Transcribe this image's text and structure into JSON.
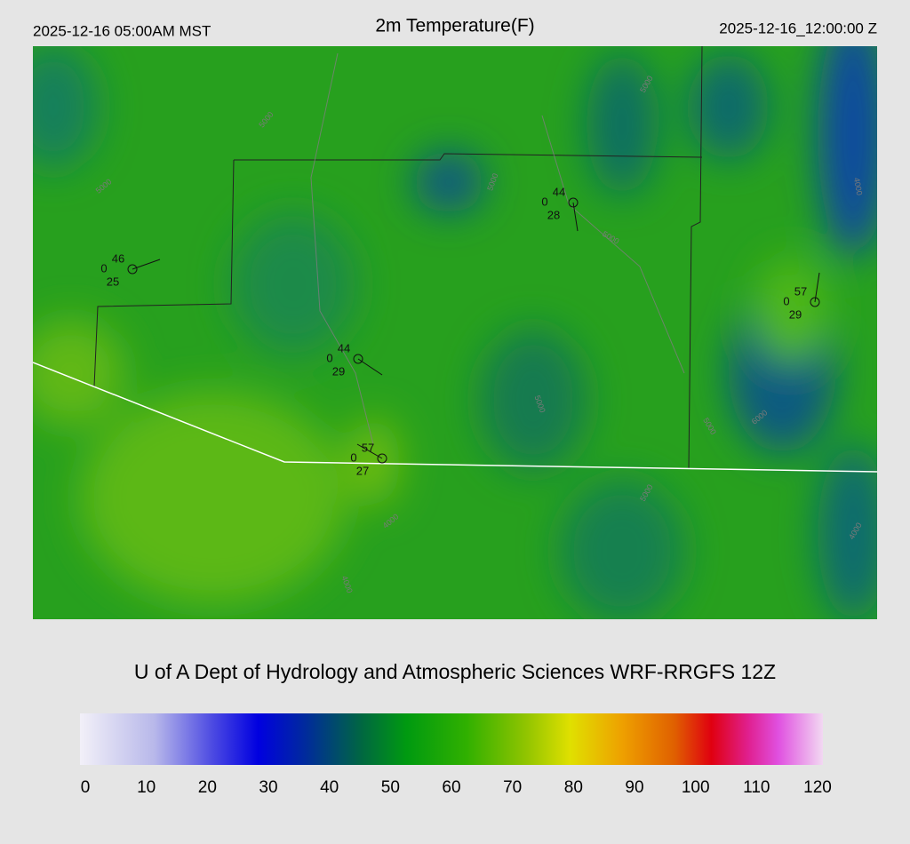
{
  "header": {
    "valid_local": "2025-12-16 05:00AM MST",
    "title": "2m Temperature(F)",
    "valid_utc": "2025-12-16_12:00:00 Z"
  },
  "stations": [
    {
      "temperature": 46,
      "code": 0,
      "dewpoint": 25
    },
    {
      "temperature": 44,
      "code": 0,
      "dewpoint": 28
    },
    {
      "temperature": 57,
      "code": 0,
      "dewpoint": 29
    },
    {
      "temperature": 44,
      "code": 0,
      "dewpoint": 29
    },
    {
      "temperature": 57,
      "code": 0,
      "dewpoint": 27
    }
  ],
  "contour_labels": [
    5000,
    5000,
    5000,
    5000,
    5000,
    5000,
    5000,
    6000,
    4000,
    4000,
    4000,
    5000,
    4000
  ],
  "credit": "U of A Dept of Hydrology and Atmospheric Sciences WRF-RRGFS 12Z",
  "colorbar": {
    "lim": [
      0,
      120
    ],
    "ticks": [
      0,
      10,
      20,
      30,
      40,
      50,
      60,
      70,
      80,
      90,
      100,
      110,
      120
    ]
  }
}
